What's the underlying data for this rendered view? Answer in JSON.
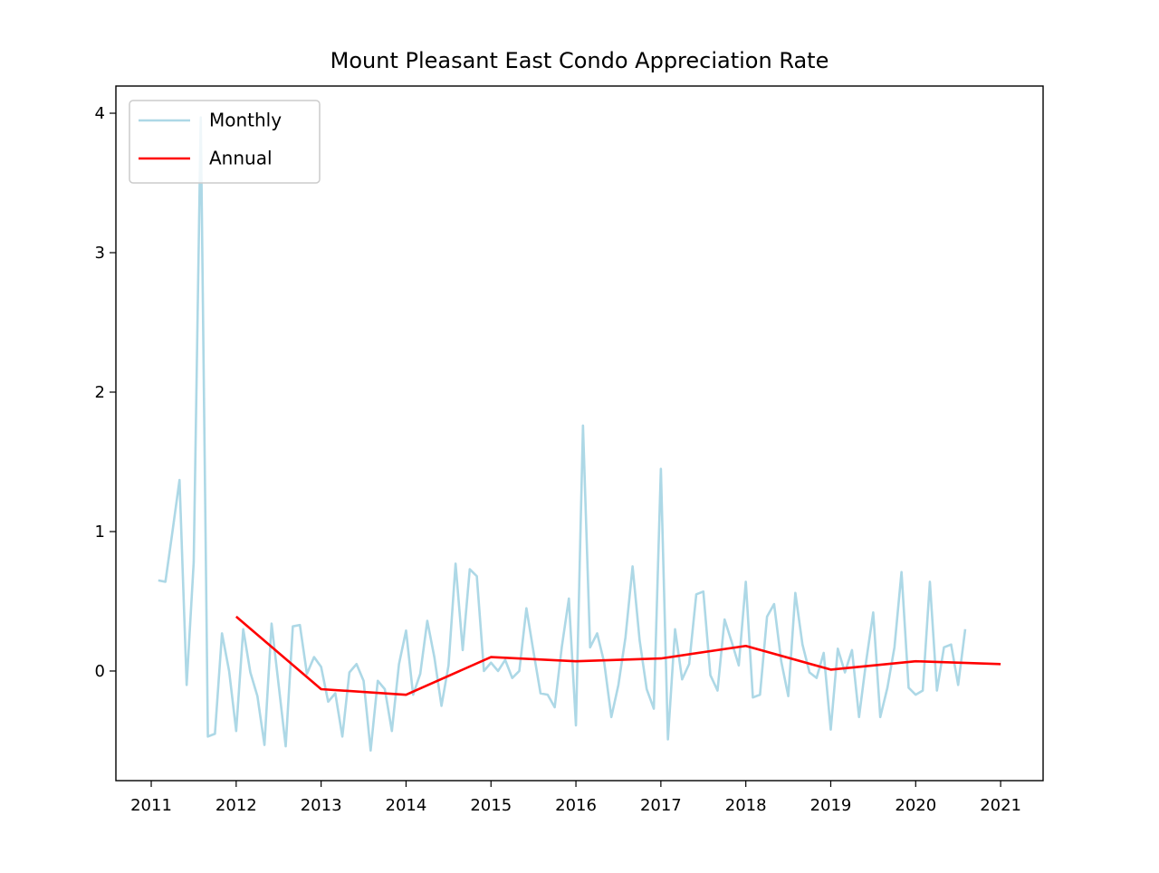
{
  "chart_data": {
    "type": "line",
    "title": "Mount Pleasant East Condo Appreciation Rate",
    "xlim": [
      2010.584,
      2021.5
    ],
    "xticks": [
      2011,
      2012,
      2013,
      2014,
      2015,
      2016,
      2017,
      2018,
      2019,
      2020,
      2021
    ],
    "ylim": [
      -0.786,
      4.195
    ],
    "yticks": [
      0,
      1,
      2,
      3,
      4
    ],
    "legend": "upper left",
    "series": [
      {
        "name": "Monthly",
        "color": "#add8e6",
        "x": [
          2011.083,
          2011.167,
          2011.25,
          2011.333,
          2011.417,
          2011.5,
          2011.583,
          2011.667,
          2011.75,
          2011.833,
          2011.917,
          2012,
          2012.083,
          2012.167,
          2012.25,
          2012.333,
          2012.417,
          2012.5,
          2012.583,
          2012.667,
          2012.75,
          2012.833,
          2012.917,
          2013,
          2013.083,
          2013.167,
          2013.25,
          2013.333,
          2013.417,
          2013.5,
          2013.583,
          2013.667,
          2013.75,
          2013.833,
          2013.917,
          2014,
          2014.083,
          2014.167,
          2014.25,
          2014.333,
          2014.417,
          2014.5,
          2014.583,
          2014.667,
          2014.75,
          2014.833,
          2014.917,
          2015,
          2015.083,
          2015.167,
          2015.25,
          2015.333,
          2015.417,
          2015.5,
          2015.583,
          2015.667,
          2015.75,
          2015.833,
          2015.917,
          2016,
          2016.083,
          2016.167,
          2016.25,
          2016.333,
          2016.417,
          2016.5,
          2016.583,
          2016.667,
          2016.75,
          2016.833,
          2016.917,
          2017,
          2017.083,
          2017.167,
          2017.25,
          2017.333,
          2017.417,
          2017.5,
          2017.583,
          2017.667,
          2017.75,
          2017.833,
          2017.917,
          2018,
          2018.083,
          2018.167,
          2018.25,
          2018.333,
          2018.417,
          2018.5,
          2018.583,
          2018.667,
          2018.75,
          2018.833,
          2018.917,
          2019,
          2019.083,
          2019.167,
          2019.25,
          2019.333,
          2019.417,
          2019.5,
          2019.583,
          2019.667,
          2019.75,
          2019.833,
          2019.917,
          2020,
          2020.083,
          2020.167,
          2020.25,
          2020.333,
          2020.417,
          2020.5,
          2020.583
        ],
        "values": [
          0.65,
          0.64,
          1.0,
          1.37,
          -0.1,
          0.78,
          3.97,
          -0.47,
          -0.45,
          0.27,
          0.0,
          -0.43,
          0.3,
          -0.01,
          -0.18,
          -0.53,
          0.34,
          -0.1,
          -0.54,
          0.32,
          0.33,
          -0.02,
          0.1,
          0.03,
          -0.22,
          -0.16,
          -0.47,
          -0.01,
          0.05,
          -0.07,
          -0.57,
          -0.07,
          -0.13,
          -0.43,
          0.05,
          0.29,
          -0.17,
          -0.02,
          0.36,
          0.1,
          -0.25,
          0.04,
          0.77,
          0.15,
          0.73,
          0.68,
          0.0,
          0.06,
          0.0,
          0.08,
          -0.05,
          0.0,
          0.45,
          0.14,
          -0.16,
          -0.17,
          -0.26,
          0.17,
          0.52,
          -0.39,
          1.76,
          0.17,
          0.27,
          0.06,
          -0.33,
          -0.1,
          0.24,
          0.75,
          0.22,
          -0.13,
          -0.27,
          1.45,
          -0.49,
          0.3,
          -0.06,
          0.05,
          0.55,
          0.57,
          -0.03,
          -0.14,
          0.37,
          0.21,
          0.04,
          0.64,
          -0.19,
          -0.17,
          0.39,
          0.48,
          0.07,
          -0.18,
          0.56,
          0.19,
          -0.01,
          -0.05,
          0.13,
          -0.42,
          0.16,
          -0.01,
          0.15,
          -0.33,
          0.07,
          0.42,
          -0.33,
          -0.12,
          0.17,
          0.71,
          -0.12,
          -0.17,
          -0.14,
          0.64,
          -0.14,
          0.17,
          0.19,
          -0.1,
          0.3
        ]
      },
      {
        "name": "Annual",
        "color": "#ff0000",
        "x": [
          2012,
          2013,
          2014,
          2015,
          2016,
          2017,
          2018,
          2019,
          2020,
          2021
        ],
        "values": [
          0.39,
          -0.13,
          -0.17,
          0.1,
          0.07,
          0.09,
          0.18,
          0.01,
          0.07,
          0.05
        ]
      }
    ]
  }
}
